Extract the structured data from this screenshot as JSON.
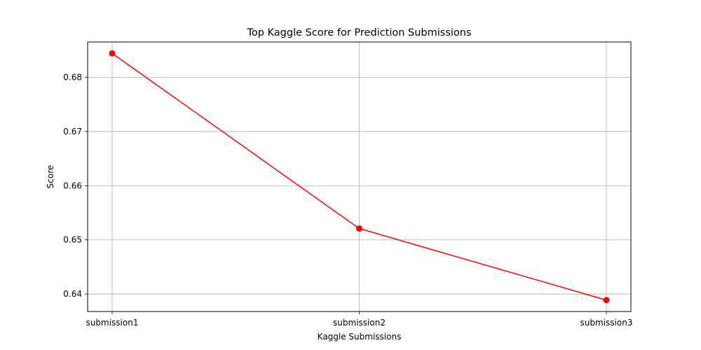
{
  "chart_data": {
    "type": "line",
    "title": "Top Kaggle Score for Prediction Submissions",
    "xlabel": "Kaggle Submissions",
    "ylabel": "Score",
    "categories": [
      "submission1",
      "submission2",
      "submission3"
    ],
    "series": [
      {
        "values": [
          0.6844,
          0.6521,
          0.6389
        ]
      }
    ],
    "ylim": [
      0.6368,
      0.6865
    ],
    "yticks": [
      0.64,
      0.65,
      0.66,
      0.67,
      0.68
    ],
    "ytick_labels": [
      "0.64",
      "0.65",
      "0.66",
      "0.67",
      "0.68"
    ],
    "grid": true,
    "colors": {
      "series": "#ff0000",
      "grid": "#b0b0b0",
      "axes": "#000000"
    },
    "marker": "circle"
  }
}
